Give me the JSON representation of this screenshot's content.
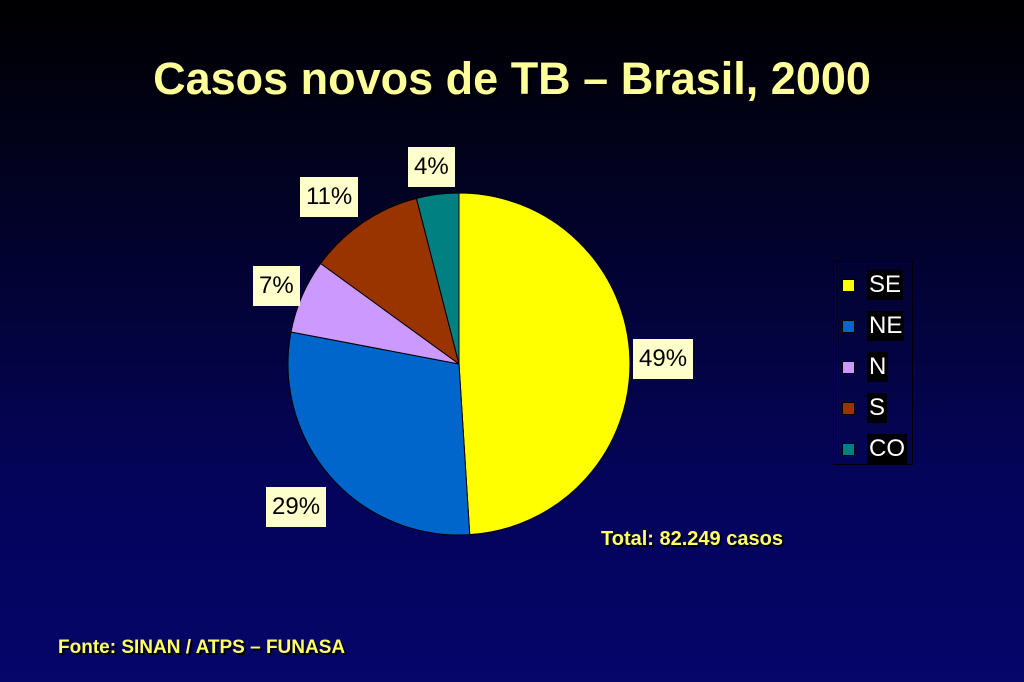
{
  "slide": {
    "title": "Casos novos de TB – Brasil, 2000",
    "total": "Total: 82.249 casos",
    "source": "Fonte: SINAN / ATPS – FUNASA"
  },
  "chart_data": {
    "type": "pie",
    "categories": [
      "SE",
      "NE",
      "N",
      "S",
      "CO"
    ],
    "values": [
      49,
      29,
      7,
      11,
      4
    ],
    "data_labels": [
      "49%",
      "29%",
      "7%",
      "11%",
      "4%"
    ],
    "colors": [
      "#ffff00",
      "#0066cc",
      "#cc99ff",
      "#993300",
      "#008080"
    ],
    "legend": {
      "placement": "right",
      "entries": [
        "SE",
        "NE",
        "N",
        "S",
        "CO"
      ]
    }
  }
}
